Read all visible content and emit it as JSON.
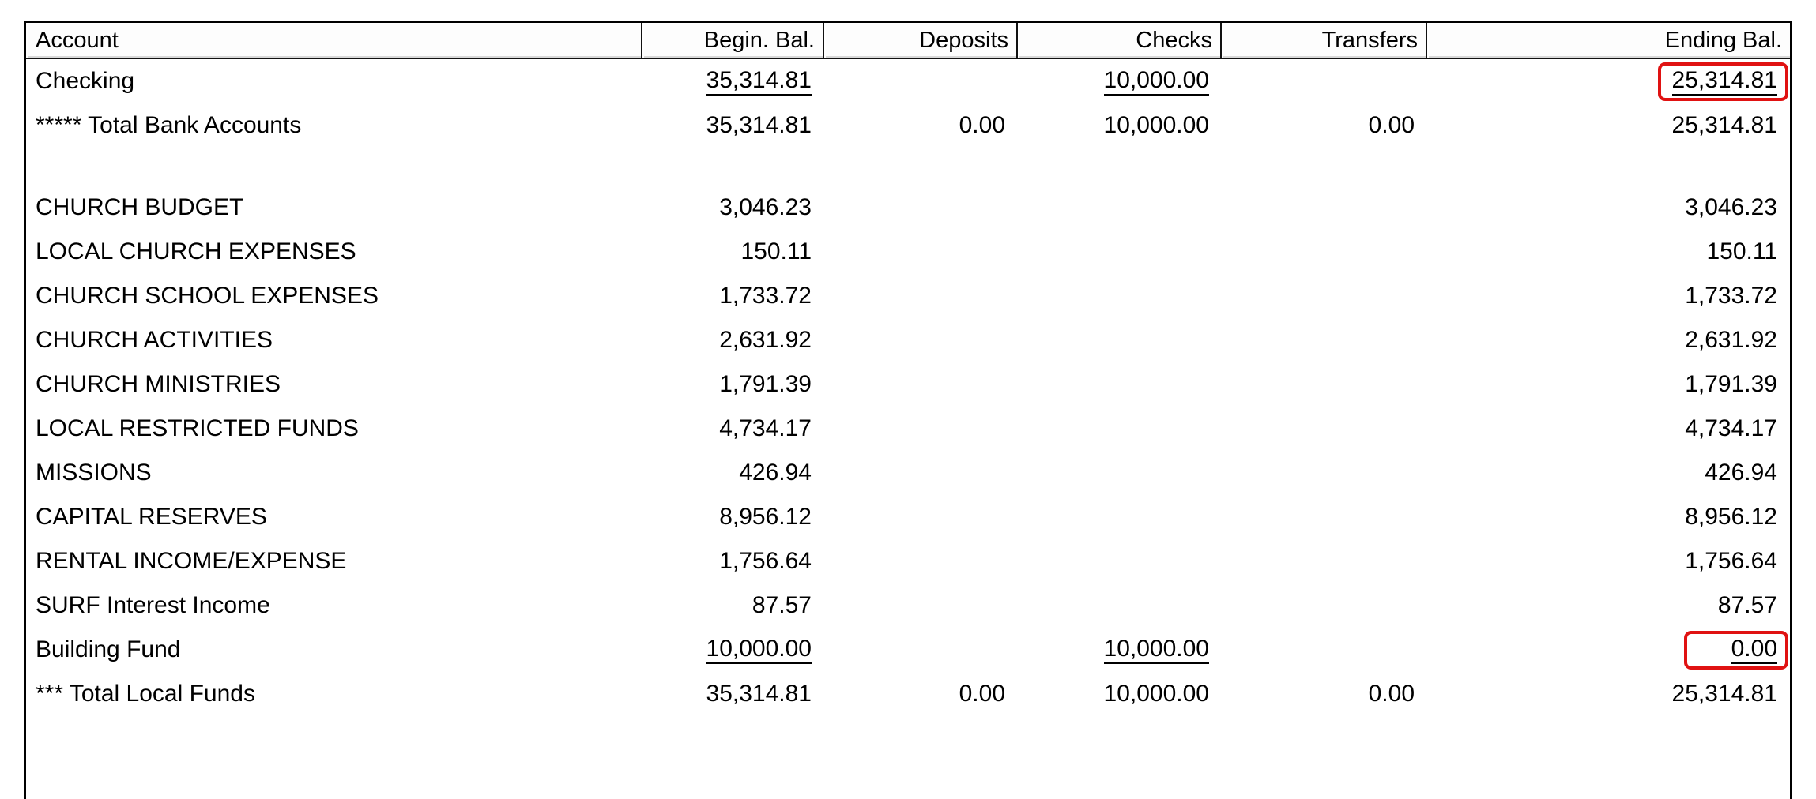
{
  "table": {
    "columns": [
      {
        "label": "Account"
      },
      {
        "label": "Begin. Bal."
      },
      {
        "label": "Deposits"
      },
      {
        "label": "Checks"
      },
      {
        "label": "Transfers"
      },
      {
        "label": "Ending Bal."
      }
    ],
    "rows": [
      {
        "cells": [
          "Checking",
          "35,314.81",
          "",
          "10,000.00",
          "",
          "25,314.81"
        ],
        "underline": [
          false,
          true,
          false,
          true,
          false,
          true
        ],
        "highlight": [
          false,
          false,
          false,
          false,
          false,
          true
        ]
      },
      {
        "cells": [
          "***** Total Bank Accounts",
          "35,314.81",
          "0.00",
          "10,000.00",
          "0.00",
          "25,314.81"
        ]
      },
      {
        "blank": true,
        "cells": [
          "",
          "",
          "",
          "",
          "",
          ""
        ]
      },
      {
        "cells": [
          "CHURCH BUDGET",
          "3,046.23",
          "",
          "",
          "",
          "3,046.23"
        ]
      },
      {
        "cells": [
          "LOCAL CHURCH EXPENSES",
          "150.11",
          "",
          "",
          "",
          "150.11"
        ]
      },
      {
        "cells": [
          "CHURCH SCHOOL EXPENSES",
          "1,733.72",
          "",
          "",
          "",
          "1,733.72"
        ]
      },
      {
        "cells": [
          "CHURCH ACTIVITIES",
          "2,631.92",
          "",
          "",
          "",
          "2,631.92"
        ]
      },
      {
        "cells": [
          "CHURCH MINISTRIES",
          "1,791.39",
          "",
          "",
          "",
          "1,791.39"
        ]
      },
      {
        "cells": [
          "LOCAL RESTRICTED FUNDS",
          "4,734.17",
          "",
          "",
          "",
          "4,734.17"
        ]
      },
      {
        "cells": [
          "MISSIONS",
          "426.94",
          "",
          "",
          "",
          "426.94"
        ]
      },
      {
        "cells": [
          "CAPITAL RESERVES",
          "8,956.12",
          "",
          "",
          "",
          "8,956.12"
        ]
      },
      {
        "cells": [
          "RENTAL INCOME/EXPENSE",
          "1,756.64",
          "",
          "",
          "",
          "1,756.64"
        ]
      },
      {
        "cells": [
          "SURF Interest Income",
          "87.57",
          "",
          "",
          "",
          "87.57"
        ]
      },
      {
        "cells": [
          "Building Fund",
          "10,000.00",
          "",
          "10,000.00",
          "",
          "0.00"
        ],
        "underline": [
          false,
          true,
          false,
          true,
          false,
          true
        ],
        "highlight": [
          false,
          false,
          false,
          false,
          false,
          true
        ]
      },
      {
        "cells": [
          "*** Total Local Funds",
          "35,314.81",
          "0.00",
          "10,000.00",
          "0.00",
          "25,314.81"
        ]
      }
    ],
    "highlight_color": "#e01212",
    "underline_color": "#000000"
  }
}
